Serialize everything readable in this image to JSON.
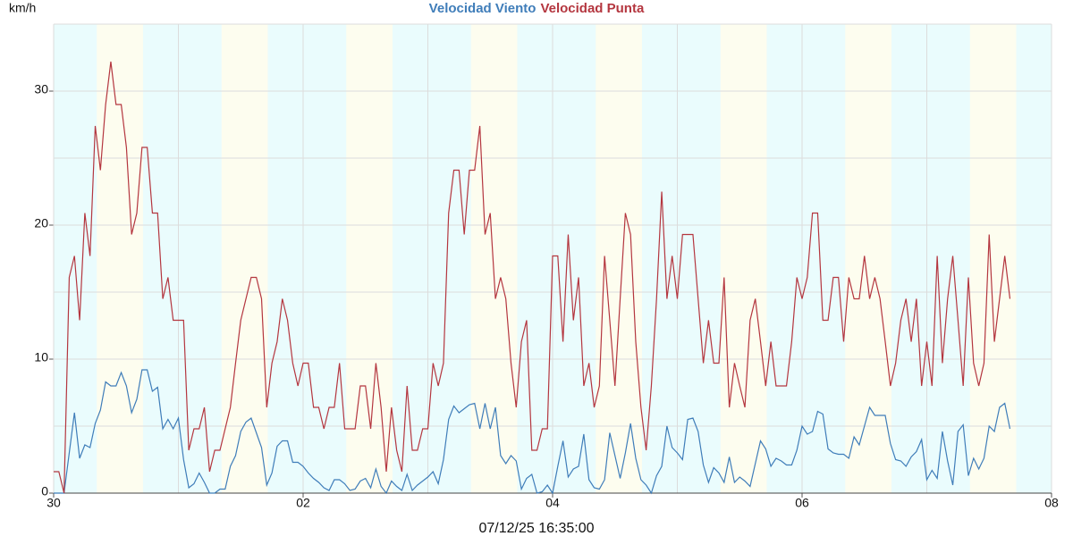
{
  "chart_data": {
    "type": "line",
    "unit_label": "km/h",
    "footer": "07/12/25 16:35:00",
    "background": "#eafcfd",
    "bands": [
      {
        "from": 8.3,
        "to": 17.2,
        "color": "#fdfdef"
      },
      {
        "from": 32.3,
        "to": 41.2,
        "color": "#fdfdef"
      },
      {
        "from": 56.3,
        "to": 65.2,
        "color": "#fdfdef"
      },
      {
        "from": 80.3,
        "to": 89.2,
        "color": "#fdfdef"
      },
      {
        "from": 104.3,
        "to": 113.2,
        "color": "#fdfdef"
      },
      {
        "from": 128.3,
        "to": 137.2,
        "color": "#fdfdef"
      },
      {
        "from": 152.3,
        "to": 161.2,
        "color": "#fdfdef"
      },
      {
        "from": 176.3,
        "to": 185.2,
        "color": "#fdfdef"
      }
    ],
    "xlim": [
      0,
      192
    ],
    "xticks": [
      {
        "value": 0,
        "label": "30"
      },
      {
        "value": 48,
        "label": "02"
      },
      {
        "value": 96,
        "label": "04"
      },
      {
        "value": 144,
        "label": "06"
      },
      {
        "value": 192,
        "label": "08"
      }
    ],
    "x_minor_grid": [
      24,
      72,
      120,
      168
    ],
    "ylim": [
      0,
      35
    ],
    "yticks": [
      0,
      10,
      20,
      30
    ],
    "y_minor_grid": [
      5,
      15,
      25,
      35
    ],
    "grid": true,
    "x": [
      0,
      1,
      2,
      3,
      4,
      5,
      6,
      7,
      8,
      9,
      10,
      11,
      12,
      13,
      14,
      15,
      16,
      17,
      18,
      19,
      20,
      21,
      22,
      23,
      24,
      25,
      26,
      27,
      28,
      29,
      30,
      31,
      32,
      33,
      34,
      35,
      36,
      37,
      38,
      39,
      40,
      41,
      42,
      43,
      44,
      45,
      46,
      47,
      48,
      49,
      50,
      51,
      52,
      53,
      54,
      55,
      56,
      57,
      58,
      59,
      60,
      61,
      62,
      63,
      64,
      65,
      66,
      67,
      68,
      69,
      70,
      71,
      72,
      73,
      74,
      75,
      76,
      77,
      78,
      79,
      80,
      81,
      82,
      83,
      84,
      85,
      86,
      87,
      88,
      89,
      90,
      91,
      92,
      93,
      94,
      95,
      96,
      97,
      98,
      99,
      100,
      101,
      102,
      103,
      104,
      105,
      106,
      107,
      108,
      109,
      110,
      111,
      112,
      113,
      114,
      115,
      116,
      117,
      118,
      119,
      120,
      121,
      122,
      123,
      124,
      125,
      126,
      127,
      128,
      129,
      130,
      131,
      132,
      133,
      134,
      135,
      136,
      137,
      138,
      139,
      140,
      141,
      142,
      143,
      144,
      145,
      146,
      147,
      148,
      149,
      150,
      151,
      152,
      153,
      154,
      155,
      156,
      157,
      158,
      159,
      160,
      161,
      162,
      163,
      164,
      165,
      166,
      167,
      168,
      169,
      170,
      171,
      172,
      173,
      174,
      175,
      176,
      177,
      178,
      179,
      180,
      181,
      182,
      183,
      184
    ],
    "series": [
      {
        "name": "Velocidad Viento",
        "color": "#3f7db9",
        "values": [
          0,
          0,
          0,
          3,
          6,
          2.6,
          3.6,
          3.4,
          5.2,
          6.2,
          8.3,
          8,
          8,
          9,
          8,
          6,
          7,
          9.2,
          9.2,
          7.6,
          7.9,
          4.8,
          5.5,
          4.8,
          5.6,
          2.5,
          0.4,
          0.7,
          1.5,
          0.8,
          0,
          0,
          0.3,
          0.3,
          2,
          2.8,
          4.6,
          5.3,
          5.6,
          4.5,
          3.4,
          0.6,
          1.5,
          3.5,
          3.9,
          3.9,
          2.3,
          2.3,
          2,
          1.5,
          1.1,
          0.8,
          0.4,
          0.2,
          1,
          1,
          0.7,
          0.2,
          0.3,
          0.9,
          1.1,
          0.4,
          1.8,
          0.5,
          0,
          0.9,
          0.5,
          0.2,
          1.4,
          0.2,
          0.6,
          0.9,
          1.2,
          1.6,
          0.7,
          2.5,
          5.5,
          6.5,
          6,
          6.3,
          6.6,
          6.7,
          4.8,
          6.7,
          4.8,
          6.4,
          2.8,
          2.2,
          2.8,
          2.4,
          0.3,
          1.1,
          1.4,
          0,
          0.1,
          0.6,
          0,
          2,
          3.9,
          1.2,
          1.8,
          2,
          4.4,
          1,
          0.4,
          0.3,
          1,
          4.5,
          2.8,
          1.1,
          3,
          5.2,
          2.6,
          1,
          0.6,
          0,
          1.3,
          2,
          5,
          3.4,
          3,
          2.5,
          5.5,
          5.6,
          4.6,
          2.1,
          0.8,
          1.9,
          1.5,
          0.8,
          2.7,
          0.8,
          1.2,
          0.9,
          0.5,
          2.2,
          3.9,
          3.3,
          2,
          2.6,
          2.4,
          2.1,
          2.1,
          3.2,
          5,
          4.4,
          4.6,
          6.1,
          5.9,
          3.3,
          3,
          2.9,
          2.9,
          2.6,
          4.2,
          3.6,
          5,
          6.4,
          5.8,
          5.8,
          5.8,
          3.7,
          2.5,
          2.4,
          2,
          2.7,
          3.1,
          4,
          1,
          1.7,
          1.1,
          4.6,
          2.4,
          0.6,
          4.6,
          5.1,
          1.3,
          2.6,
          1.8,
          2.6,
          5,
          4.6,
          6.4,
          6.7,
          4.8
        ]
      },
      {
        "name": "Velocidad Punta",
        "color": "#b4363f",
        "values": [
          1.6,
          1.6,
          0,
          16.1,
          17.7,
          12.9,
          20.9,
          17.7,
          27.4,
          24.1,
          29,
          32.2,
          29,
          29,
          25.8,
          19.3,
          20.9,
          25.8,
          25.8,
          20.9,
          20.9,
          14.5,
          16.1,
          12.9,
          12.9,
          12.9,
          3.2,
          4.8,
          4.8,
          6.4,
          1.6,
          3.2,
          3.2,
          4.8,
          6.4,
          9.7,
          12.9,
          14.5,
          16.1,
          16.1,
          14.5,
          6.4,
          9.7,
          11.3,
          14.5,
          12.9,
          9.7,
          8,
          9.7,
          9.7,
          6.4,
          6.4,
          4.8,
          6.4,
          6.4,
          9.7,
          4.8,
          4.8,
          4.8,
          8,
          8,
          4.8,
          9.7,
          6.4,
          1.6,
          6.4,
          3.2,
          1.6,
          8,
          3.2,
          3.2,
          4.8,
          4.8,
          9.7,
          8,
          9.7,
          20.9,
          24.1,
          24.1,
          19.3,
          24.1,
          24.1,
          27.4,
          19.3,
          20.9,
          14.5,
          16.1,
          14.5,
          9.7,
          6.4,
          11.3,
          12.9,
          3.2,
          3.2,
          4.8,
          4.8,
          17.7,
          17.7,
          11.3,
          19.3,
          12.9,
          16.1,
          8,
          9.7,
          6.4,
          8,
          17.7,
          12.9,
          8,
          14.5,
          20.9,
          19.3,
          11.3,
          6.4,
          3.2,
          8,
          14.5,
          22.5,
          14.5,
          17.7,
          14.5,
          19.3,
          19.3,
          19.3,
          14.5,
          9.7,
          12.9,
          9.7,
          9.7,
          16.1,
          6.4,
          9.7,
          8,
          6.4,
          12.9,
          14.5,
          11.3,
          8,
          11.3,
          8,
          8,
          8,
          11.3,
          16.1,
          14.5,
          16.1,
          20.9,
          20.9,
          12.9,
          12.9,
          16.1,
          16.1,
          11.3,
          16.1,
          14.5,
          14.5,
          17.7,
          14.5,
          16.1,
          14.5,
          11.3,
          8,
          9.7,
          12.9,
          14.5,
          11.3,
          14.5,
          8,
          11.3,
          8,
          17.7,
          9.7,
          14.5,
          17.7,
          12.9,
          8,
          16.1,
          9.7,
          8,
          9.7,
          19.3,
          11.3,
          14.5,
          17.7,
          14.5
        ]
      }
    ]
  }
}
